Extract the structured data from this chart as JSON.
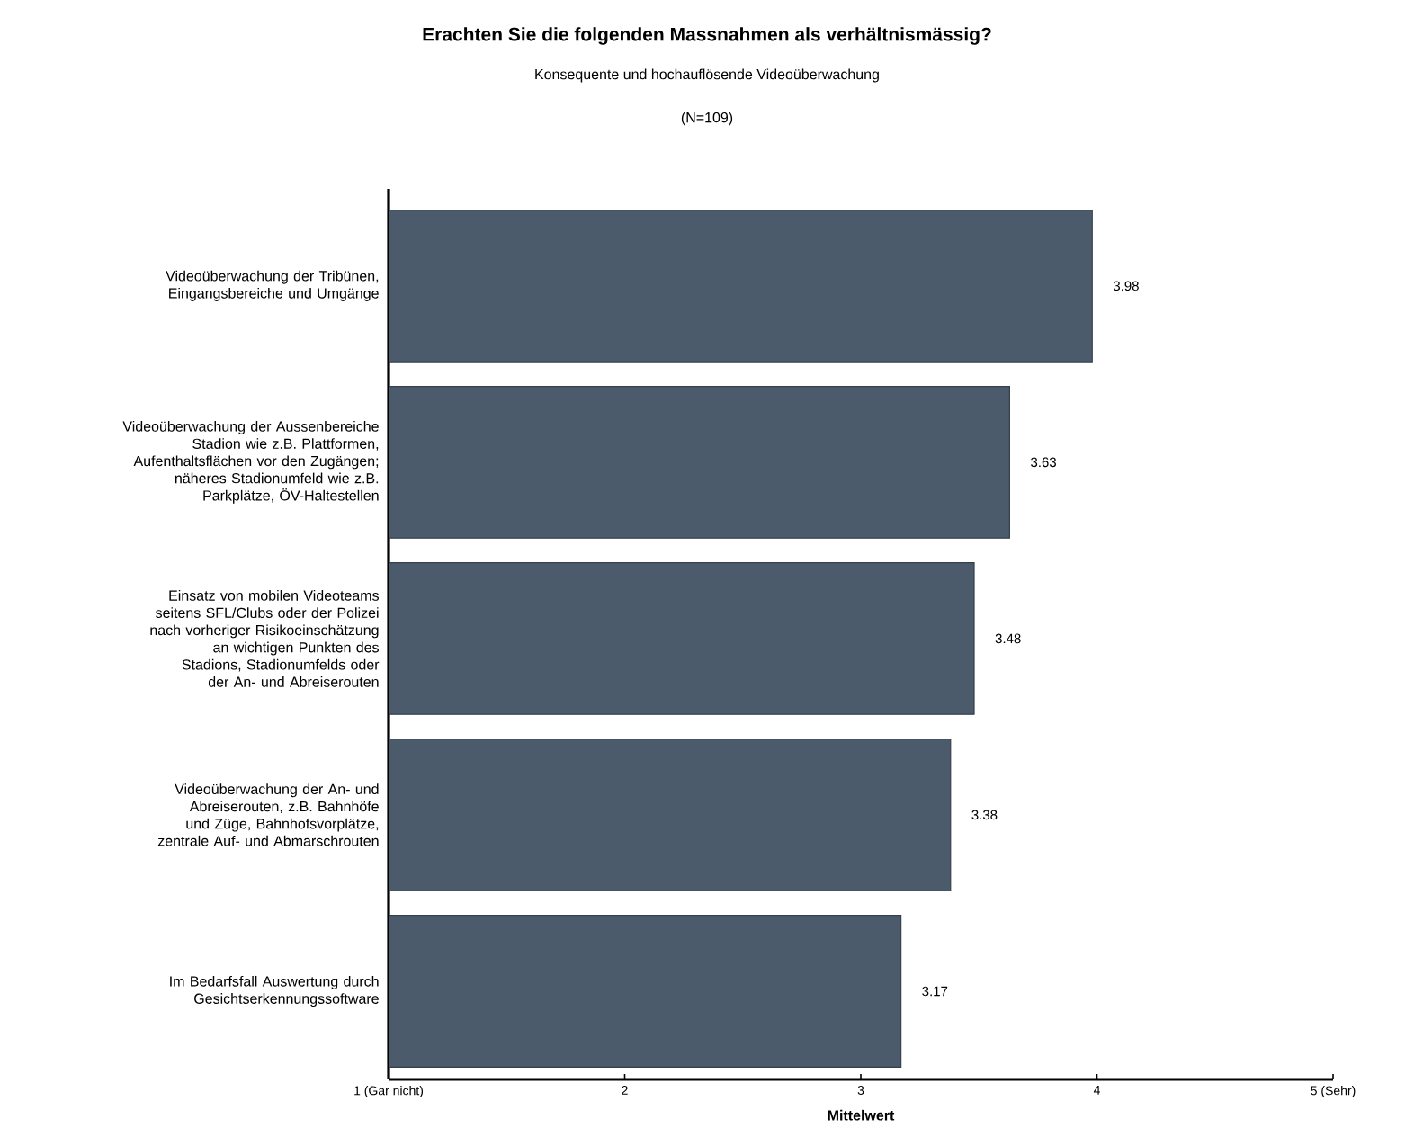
{
  "chart_data": {
    "type": "bar",
    "orientation": "horizontal",
    "title": "Erachten Sie die folgenden Massnahmen als verhältnismässig?",
    "subtitle": "Konsequente und hochauflösende Videoüberwachung",
    "annotations": [
      "(N=109)"
    ],
    "xlabel": "Mittelwert",
    "categories": [
      "Videoüberwachung der Tribünen, Eingangsbereiche und Umgänge",
      "Videoüberwachung der Aussenbereiche Stadion wie z.B. Plattformen, Aufenthaltsflächen vor den Zugängen; näheres Stadionumfeld wie z.B. Parkplätze, ÖV-Haltestellen",
      "Einsatz von mobilen Videoteams seitens SFL/Clubs oder der Polizei nach vorheriger Risikoeinschätzung an wichtigen Punkten des Stadions, Stadionumfelds oder der An- und Abreiserouten",
      "Videoüberwachung der An- und Abreiserouten, z.B. Bahnhöfe und Züge, Bahnhofsvorplätze, zentrale Auf- und Abmarschrouten",
      "Im Bedarfsfall Auswertung durch Gesichtserkennungssoftware"
    ],
    "values": [
      3.98,
      3.63,
      3.48,
      3.38,
      3.17
    ],
    "color": "#4b5b6c",
    "data_labels": true,
    "xlim": [
      1,
      5
    ],
    "xticks": [
      {
        "value": 1,
        "label": "1 (Gar nicht)"
      },
      2,
      3,
      4,
      {
        "value": 5,
        "label": "5 (Sehr)"
      }
    ],
    "grid": false
  }
}
